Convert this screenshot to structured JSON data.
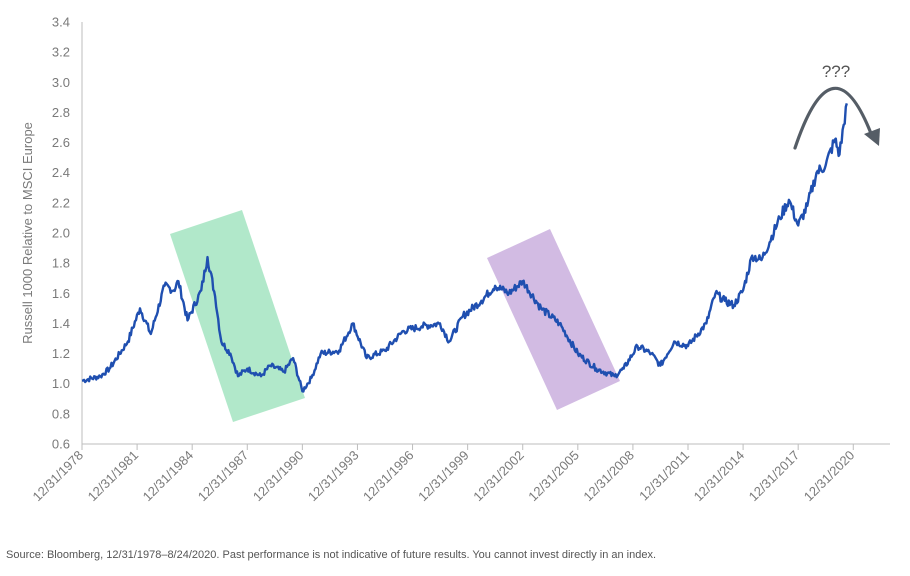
{
  "chart_data": {
    "type": "line",
    "title": "",
    "ylabel": "Russell 1000 Relative to MSCI Europe",
    "xlabel": "",
    "ylim": [
      0.6,
      3.4
    ],
    "yticks": [
      "0.6",
      "0.8",
      "1.0",
      "1.2",
      "1.4",
      "1.6",
      "1.8",
      "2.0",
      "2.2",
      "2.4",
      "2.6",
      "2.8",
      "3.0",
      "3.2",
      "3.4"
    ],
    "xlim": [
      "12/31/1978",
      "12/31/2022"
    ],
    "xticks": [
      "12/31/1978",
      "12/31/1981",
      "12/31/1984",
      "12/31/1987",
      "12/31/1990",
      "12/31/1993",
      "12/31/1996",
      "12/31/1999",
      "12/31/2002",
      "12/31/2005",
      "12/31/2008",
      "12/31/2011",
      "12/31/2014",
      "12/31/2017",
      "12/31/2020"
    ],
    "grid": false,
    "legend": "none",
    "series": [
      {
        "color": "#1f4fb0",
        "points": [
          [
            "12/31/1978",
            1.02
          ],
          [
            "12/31/1979",
            1.05
          ],
          [
            "06/30/1980",
            1.1
          ],
          [
            "06/30/1981",
            1.28
          ],
          [
            "02/28/1982",
            1.5
          ],
          [
            "09/30/1982",
            1.33
          ],
          [
            "06/30/1983",
            1.65
          ],
          [
            "12/31/1983",
            1.62
          ],
          [
            "03/31/1984",
            1.68
          ],
          [
            "09/30/1984",
            1.42
          ],
          [
            "06/30/1985",
            1.62
          ],
          [
            "10/31/1985",
            1.84
          ],
          [
            "03/31/1986",
            1.58
          ],
          [
            "07/31/1986",
            1.28
          ],
          [
            "01/31/1987",
            1.2
          ],
          [
            "06/30/1987",
            1.05
          ],
          [
            "12/31/1987",
            1.1
          ],
          [
            "09/30/1988",
            1.05
          ],
          [
            "03/31/1989",
            1.12
          ],
          [
            "12/31/1989",
            1.08
          ],
          [
            "06/30/1990",
            1.17
          ],
          [
            "12/31/1990",
            0.95
          ],
          [
            "06/30/1991",
            1.04
          ],
          [
            "12/31/1991",
            1.2
          ],
          [
            "12/31/1992",
            1.22
          ],
          [
            "09/30/1993",
            1.4
          ],
          [
            "06/30/1994",
            1.17
          ],
          [
            "06/30/1995",
            1.22
          ],
          [
            "06/30/1996",
            1.35
          ],
          [
            "06/30/1997",
            1.38
          ],
          [
            "06/30/1998",
            1.4
          ],
          [
            "12/31/1998",
            1.28
          ],
          [
            "09/30/1999",
            1.45
          ],
          [
            "09/30/2000",
            1.55
          ],
          [
            "06/30/2001",
            1.65
          ],
          [
            "03/31/2002",
            1.6
          ],
          [
            "12/31/2002",
            1.68
          ],
          [
            "12/31/2003",
            1.5
          ],
          [
            "12/31/2004",
            1.4
          ],
          [
            "12/31/2005",
            1.2
          ],
          [
            "12/31/2006",
            1.1
          ],
          [
            "12/31/2007",
            1.05
          ],
          [
            "06/30/2008",
            1.1
          ],
          [
            "03/31/2009",
            1.25
          ],
          [
            "12/31/2009",
            1.2
          ],
          [
            "06/30/2010",
            1.12
          ],
          [
            "03/31/2011",
            1.28
          ],
          [
            "12/31/2011",
            1.25
          ],
          [
            "12/31/2012",
            1.4
          ],
          [
            "06/30/2013",
            1.6
          ],
          [
            "12/31/2013",
            1.55
          ],
          [
            "06/30/2014",
            1.52
          ],
          [
            "12/31/2014",
            1.62
          ],
          [
            "06/30/2015",
            1.85
          ],
          [
            "12/31/2015",
            1.82
          ],
          [
            "12/31/2016",
            2.1
          ],
          [
            "06/30/2017",
            2.22
          ],
          [
            "12/31/2017",
            2.05
          ],
          [
            "06/30/2018",
            2.18
          ],
          [
            "12/31/2018",
            2.4
          ],
          [
            "06/30/2019",
            2.45
          ],
          [
            "12/31/2019",
            2.62
          ],
          [
            "03/31/2020",
            2.52
          ],
          [
            "08/24/2020",
            2.86
          ]
        ]
      }
    ],
    "annotations": [
      {
        "type": "band",
        "color": "#a8e6c4"
      },
      {
        "type": "band",
        "color": "#cdb4e0"
      },
      {
        "type": "arrow",
        "label": "???",
        "color": "#555d66"
      }
    ]
  },
  "source_note": "Source: Bloomberg, 12/31/1978–8/24/2020. Past performance is not indicative of future results. You cannot invest directly in an index."
}
